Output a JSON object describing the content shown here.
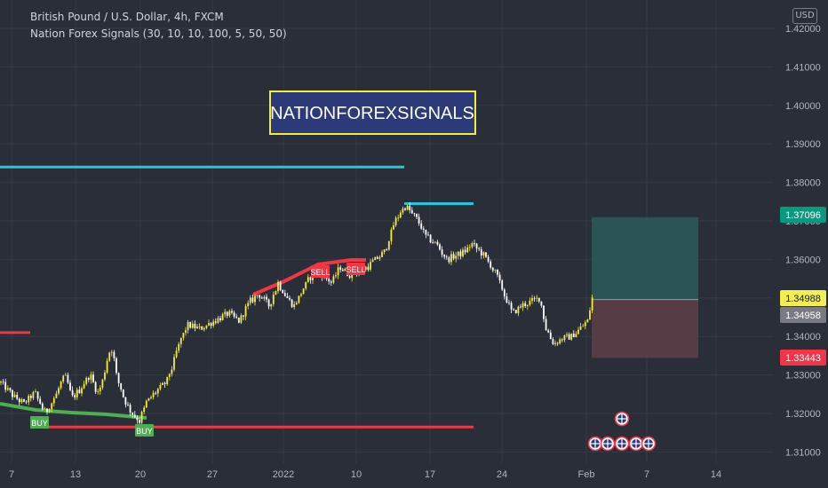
{
  "header": {
    "symbol": "British Pound / U.S. Dollar, 4h, FXCM",
    "indicator": "Nation Forex Signals  (30, 10, 10, 100, 5, 50, 50)",
    "currency": "USD"
  },
  "banner": {
    "text": "NATIONFOREXSIGNALS"
  },
  "chart_data": {
    "type": "candlestick",
    "timeframe": "4h",
    "y_ticks": [
      "1.42000",
      "1.41000",
      "1.40000",
      "1.39000",
      "1.38000",
      "1.37000",
      "1.36000",
      "1.35000",
      "1.34000",
      "1.33000",
      "1.32000",
      "1.31000"
    ],
    "x_ticks": [
      "7",
      "13",
      "20",
      "27",
      "2022",
      "10",
      "17",
      "24",
      "Feb",
      "7",
      "14"
    ],
    "ylim": [
      1.3095,
      1.4215
    ],
    "price_labels": [
      {
        "value": "1.37096",
        "kind": "take-profit",
        "color": "#089981"
      },
      {
        "value": "1.34988",
        "kind": "last-price",
        "color": "#f5f04b"
      },
      {
        "value": "1.34958",
        "kind": "entry",
        "color": "#787b86"
      },
      {
        "value": "1.33443",
        "kind": "stop-loss",
        "color": "#f23645"
      }
    ],
    "signals": [
      {
        "label": "BUY",
        "type": "buy",
        "color": "#4caf50"
      },
      {
        "label": "BUY",
        "type": "buy",
        "color": "#4caf50"
      },
      {
        "label": "SELL",
        "type": "sell",
        "color": "#f23645"
      },
      {
        "label": "SELL",
        "type": "sell",
        "color": "#f23645"
      }
    ],
    "levels": [
      {
        "name": "resistance",
        "price": 1.384,
        "color": "#26c6da"
      },
      {
        "name": "swing-high",
        "price": 1.3745,
        "color": "#26c6da"
      },
      {
        "name": "support",
        "price": 1.3165,
        "color": "#f23645"
      },
      {
        "name": "left-resistance",
        "price": 1.341,
        "color": "#f23645"
      }
    ],
    "anchors": [
      {
        "i": 0,
        "p": 1.328
      },
      {
        "i": 14,
        "p": 1.3245
      },
      {
        "i": 26,
        "p": 1.3225
      },
      {
        "i": 38,
        "p": 1.3255
      },
      {
        "i": 50,
        "p": 1.32
      },
      {
        "i": 60,
        "p": 1.324
      },
      {
        "i": 72,
        "p": 1.33
      },
      {
        "i": 80,
        "p": 1.324
      },
      {
        "i": 88,
        "p": 1.326
      },
      {
        "i": 100,
        "p": 1.33
      },
      {
        "i": 110,
        "p": 1.325
      },
      {
        "i": 118,
        "p": 1.332
      },
      {
        "i": 124,
        "p": 1.338
      },
      {
        "i": 130,
        "p": 1.33
      },
      {
        "i": 140,
        "p": 1.323
      },
      {
        "i": 148,
        "p": 1.32
      },
      {
        "i": 156,
        "p": 1.318
      },
      {
        "i": 164,
        "p": 1.323
      },
      {
        "i": 176,
        "p": 1.326
      },
      {
        "i": 186,
        "p": 1.328
      },
      {
        "i": 194,
        "p": 1.333
      },
      {
        "i": 202,
        "p": 1.339
      },
      {
        "i": 210,
        "p": 1.343
      },
      {
        "i": 224,
        "p": 1.342
      },
      {
        "i": 240,
        "p": 1.344
      },
      {
        "i": 256,
        "p": 1.346
      },
      {
        "i": 268,
        "p": 1.344
      },
      {
        "i": 280,
        "p": 1.349
      },
      {
        "i": 290,
        "p": 1.351
      },
      {
        "i": 302,
        "p": 1.348
      },
      {
        "i": 312,
        "p": 1.354
      },
      {
        "i": 322,
        "p": 1.35
      },
      {
        "i": 330,
        "p": 1.348
      },
      {
        "i": 342,
        "p": 1.353
      },
      {
        "i": 352,
        "p": 1.357
      },
      {
        "i": 362,
        "p": 1.356
      },
      {
        "i": 372,
        "p": 1.354
      },
      {
        "i": 382,
        "p": 1.358
      },
      {
        "i": 392,
        "p": 1.356
      },
      {
        "i": 402,
        "p": 1.357
      },
      {
        "i": 412,
        "p": 1.358
      },
      {
        "i": 422,
        "p": 1.36
      },
      {
        "i": 432,
        "p": 1.362
      },
      {
        "i": 442,
        "p": 1.369
      },
      {
        "i": 450,
        "p": 1.3725
      },
      {
        "i": 456,
        "p": 1.374
      },
      {
        "i": 462,
        "p": 1.372
      },
      {
        "i": 470,
        "p": 1.37
      },
      {
        "i": 478,
        "p": 1.366
      },
      {
        "i": 490,
        "p": 1.364
      },
      {
        "i": 502,
        "p": 1.36
      },
      {
        "i": 512,
        "p": 1.361
      },
      {
        "i": 522,
        "p": 1.362
      },
      {
        "i": 530,
        "p": 1.364
      },
      {
        "i": 540,
        "p": 1.362
      },
      {
        "i": 550,
        "p": 1.359
      },
      {
        "i": 560,
        "p": 1.355
      },
      {
        "i": 568,
        "p": 1.35
      },
      {
        "i": 576,
        "p": 1.346
      },
      {
        "i": 586,
        "p": 1.348
      },
      {
        "i": 596,
        "p": 1.349
      },
      {
        "i": 606,
        "p": 1.35
      },
      {
        "i": 614,
        "p": 1.342
      },
      {
        "i": 622,
        "p": 1.338
      },
      {
        "i": 632,
        "p": 1.3395
      },
      {
        "i": 642,
        "p": 1.34
      },
      {
        "i": 652,
        "p": 1.342
      },
      {
        "i": 660,
        "p": 1.344
      },
      {
        "i": 666,
        "p": 1.35
      }
    ]
  }
}
